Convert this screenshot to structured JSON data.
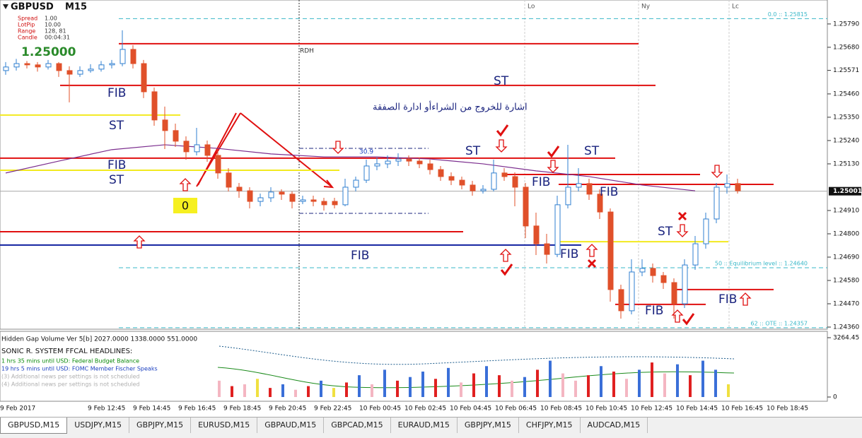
{
  "header": {
    "symbol": "GBPUSD",
    "timeframe": "M15",
    "price": "1.25000",
    "info": [
      [
        "Spread",
        "1.00"
      ],
      [
        "LotPip",
        "10.00"
      ],
      [
        "Range",
        "128, 81"
      ],
      [
        "Candle",
        "00:04:31"
      ]
    ]
  },
  "chart_data": {
    "type": "candlestick",
    "bull_color": "#2f7fd0",
    "bear_color": "#e0502a",
    "ylim": [
      1.2435,
      1.25903
    ],
    "yticks": [
      {
        "value": 1.2579,
        "label": "1.25790"
      },
      {
        "value": 1.2568,
        "label": "1.25680"
      },
      {
        "value": 1.25571,
        "label": "1.25571"
      },
      {
        "value": 1.2546,
        "label": "1.25460"
      },
      {
        "value": 1.2535,
        "label": "1.25350"
      },
      {
        "value": 1.2524,
        "label": "1.25240"
      },
      {
        "value": 1.2513,
        "label": "1.25130"
      },
      {
        "value": 1.2491,
        "label": "1.24910"
      },
      {
        "value": 1.248,
        "label": "1.24800"
      },
      {
        "value": 1.2469,
        "label": "1.24690"
      },
      {
        "value": 1.2458,
        "label": "1.24580"
      },
      {
        "value": 1.2447,
        "label": "1.24470"
      },
      {
        "value": 1.2436,
        "label": "1.24360"
      }
    ],
    "current": {
      "value": 1.25001,
      "label": "1.25001"
    },
    "candles": [
      [
        1.2557,
        1.2561,
        1.2555,
        1.25587
      ],
      [
        1.25587,
        1.25625,
        1.2557,
        1.25603
      ],
      [
        1.25603,
        1.25615,
        1.2558,
        1.25597
      ],
      [
        1.25597,
        1.2561,
        1.25565,
        1.25587
      ],
      [
        1.25587,
        1.2562,
        1.25575,
        1.25603
      ],
      [
        1.25603,
        1.2561,
        1.2554,
        1.2557
      ],
      [
        1.2557,
        1.2559,
        1.2542,
        1.25553
      ],
      [
        1.25553,
        1.2559,
        1.2554,
        1.2557
      ],
      [
        1.2557,
        1.256,
        1.2556,
        1.25577
      ],
      [
        1.25577,
        1.25615,
        1.25565,
        1.25597
      ],
      [
        1.25597,
        1.2562,
        1.2558,
        1.25603
      ],
      [
        1.25603,
        1.2576,
        1.2559,
        1.2567
      ],
      [
        1.2567,
        1.2569,
        1.2558,
        1.25603
      ],
      [
        1.25603,
        1.2562,
        1.2544,
        1.2547
      ],
      [
        1.2547,
        1.2549,
        1.2531,
        1.25337
      ],
      [
        1.25337,
        1.254,
        1.252,
        1.25287
      ],
      [
        1.25287,
        1.2532,
        1.2521,
        1.25237
      ],
      [
        1.25237,
        1.2526,
        1.2515,
        1.25187
      ],
      [
        1.25187,
        1.253,
        1.2517,
        1.2522
      ],
      [
        1.2522,
        1.2524,
        1.2514,
        1.2517
      ],
      [
        1.2517,
        1.2519,
        1.2506,
        1.25087
      ],
      [
        1.25087,
        1.2511,
        1.25,
        1.2502
      ],
      [
        1.2502,
        1.2504,
        1.2497,
        1.25003
      ],
      [
        1.25003,
        1.2502,
        1.2492,
        1.24953
      ],
      [
        1.24953,
        1.2499,
        1.2493,
        1.2497
      ],
      [
        1.2497,
        1.2502,
        1.2495,
        1.24997
      ],
      [
        1.24997,
        1.2501,
        1.2496,
        1.24987
      ],
      [
        1.24987,
        1.25,
        1.2492,
        1.24953
      ],
      [
        1.24953,
        1.2498,
        1.2494,
        1.2496
      ],
      [
        1.2496,
        1.2498,
        1.2493,
        1.24953
      ],
      [
        1.24953,
        1.2497,
        1.2491,
        1.24937
      ],
      [
        1.24953,
        1.2497,
        1.2492,
        1.24937
      ],
      [
        1.24937,
        1.2506,
        1.2493,
        1.2502
      ],
      [
        1.2502,
        1.2507,
        1.25,
        1.25053
      ],
      [
        1.25053,
        1.2515,
        1.2504,
        1.2512
      ],
      [
        1.2512,
        1.2516,
        1.251,
        1.2513
      ],
      [
        1.2513,
        1.2517,
        1.2511,
        1.25143
      ],
      [
        1.25143,
        1.2518,
        1.2512,
        1.25153
      ],
      [
        1.25153,
        1.2517,
        1.2512,
        1.25143
      ],
      [
        1.25143,
        1.2516,
        1.2511,
        1.2513
      ],
      [
        1.2513,
        1.2515,
        1.2508,
        1.25103
      ],
      [
        1.25103,
        1.2512,
        1.2505,
        1.2507
      ],
      [
        1.2507,
        1.2509,
        1.2503,
        1.25053
      ],
      [
        1.25053,
        1.2507,
        1.2501,
        1.2503
      ],
      [
        1.2503,
        1.2505,
        1.2498,
        1.25003
      ],
      [
        1.25003,
        1.2503,
        1.2499,
        1.2501
      ],
      [
        1.2501,
        1.2515,
        1.25,
        1.25087
      ],
      [
        1.25087,
        1.2511,
        1.2505,
        1.2507
      ],
      [
        1.2507,
        1.2509,
        1.2493,
        1.2502
      ],
      [
        1.2502,
        1.2504,
        1.2478,
        1.24837
      ],
      [
        1.24837,
        1.249,
        1.247,
        1.24753
      ],
      [
        1.24753,
        1.248,
        1.2466,
        1.24703
      ],
      [
        1.24703,
        1.2498,
        1.2469,
        1.24937
      ],
      [
        1.24937,
        1.2522,
        1.2492,
        1.2502
      ],
      [
        1.2502,
        1.2511,
        1.25,
        1.25037
      ],
      [
        1.25037,
        1.2506,
        1.2496,
        1.24987
      ],
      [
        1.24987,
        1.2501,
        1.2487,
        1.24903
      ],
      [
        1.24903,
        1.2492,
        1.2448,
        1.24537
      ],
      [
        1.24537,
        1.2456,
        1.244,
        1.24437
      ],
      [
        1.24437,
        1.2468,
        1.2442,
        1.2462
      ],
      [
        1.2462,
        1.2468,
        1.246,
        1.24637
      ],
      [
        1.24637,
        1.2466,
        1.2457,
        1.24603
      ],
      [
        1.24603,
        1.2462,
        1.2454,
        1.2457
      ],
      [
        1.2457,
        1.2459,
        1.244,
        1.2447
      ],
      [
        1.2447,
        1.2468,
        1.2445,
        1.24653
      ],
      [
        1.24653,
        1.2479,
        1.2463,
        1.24753
      ],
      [
        1.24753,
        1.249,
        1.2473,
        1.2487
      ],
      [
        1.2487,
        1.2504,
        1.2485,
        1.2502
      ],
      [
        1.2502,
        1.2508,
        1.2499,
        1.25037
      ],
      [
        1.25037,
        1.2506,
        1.2499,
        1.25003
      ]
    ],
    "ma": {
      "color": "#7b2d8e",
      "values": [
        1.25087,
        1.25143,
        1.25197,
        1.2522,
        1.25203,
        1.25177,
        1.25163,
        1.25163,
        1.25153,
        1.2513,
        1.25097,
        1.2507,
        1.2503,
        1.25003
      ]
    },
    "levels": [
      {
        "value": 1.25697,
        "color": "#e01010"
      },
      {
        "value": 1.255,
        "color": "#e01010"
      },
      {
        "value": 1.25157,
        "color": "#e01010"
      },
      {
        "value": 1.2508,
        "color": "#e01010"
      },
      {
        "value": 1.25033,
        "color": "#e01010"
      },
      {
        "value": 1.2481,
        "color": "#e01010"
      },
      {
        "value": 1.24537,
        "color": "#e01010"
      },
      {
        "value": 1.24467,
        "color": "#e01010"
      },
      {
        "value": 1.24747,
        "color": "#1020a0"
      },
      {
        "value": 1.2536,
        "color": "#f2ea20"
      },
      {
        "value": 1.251,
        "color": "#f2ea20"
      },
      {
        "value": 1.24763,
        "color": "#f2ea20"
      }
    ],
    "fib_levels": [
      {
        "value": 1.25815,
        "label": "0.0 :: 1.25815"
      },
      {
        "value": 1.2464,
        "label": "50 :: Equilibrium level :: 1.24640"
      },
      {
        "value": 1.24357,
        "label": "62 :: OTE :: 1.24357"
      }
    ],
    "x_labels": [
      "9 Feb 2017",
      "9 Feb 12:45",
      "9 Feb 14:45",
      "9 Feb 16:45",
      "9 Feb 18:45",
      "9 Feb 20:45",
      "9 Feb 22:45",
      "10 Feb 00:45",
      "10 Feb 02:45",
      "10 Feb 04:45",
      "10 Feb 06:45",
      "10 Feb 08:45",
      "10 Feb 10:45",
      "10 Feb 12:45",
      "10 Feb 14:45",
      "10 Feb 16:45",
      "10 Feb 18:45"
    ]
  },
  "annotations": {
    "arabic": "اشارة للخروج من الشراءأو ادارة الصفقة",
    "labels": [
      "FIB",
      "ST",
      "FIB",
      "ST",
      "ST",
      "ST",
      "ST",
      "FIB",
      "FIB",
      "FIB",
      "FIB",
      "ST",
      "FIB",
      "FIB"
    ],
    "zero": "0",
    "rdh": "RDH",
    "fib_value": "30.9",
    "sessions": [
      "Lo",
      "Ny",
      "Lc"
    ]
  },
  "volume": {
    "title": "Hidden Gap Volume Ver 5[b] 2027.0000 1338.0000 551.0000",
    "ylim": [
      0,
      3264.45
    ],
    "yticks": [
      {
        "value": 3264.45,
        "label": "3264.45"
      },
      0
    ],
    "values": [
      900,
      600,
      700,
      1000,
      500,
      700,
      400,
      600,
      900,
      500,
      800,
      1200,
      700,
      1500,
      900,
      1100,
      1400,
      1000,
      1600,
      800,
      1300,
      1700,
      1200,
      900,
      1100,
      1500,
      2000,
      1300,
      900,
      1200,
      1700,
      1400,
      1000,
      1500,
      1900,
      1300,
      1800,
      1200,
      2000,
      1500,
      700
    ],
    "colors": [
      "#f4b6c2",
      "#e02020",
      "#f4b6c2",
      "#f0e040",
      "#e02020",
      "#3a6fd8",
      "#f4b6c2",
      "#e02020",
      "#3a6fd8",
      "#f0e040",
      "#e02020",
      "#3a6fd8",
      "#f4b6c2",
      "#3a6fd8",
      "#e02020",
      "#3a6fd8",
      "#3a6fd8",
      "#e02020",
      "#3a6fd8",
      "#f4b6c2",
      "#e02020",
      "#3a6fd8",
      "#e02020",
      "#f4b6c2",
      "#3a6fd8",
      "#e02020",
      "#3a6fd8",
      "#f4b6c2",
      "#f4b6c2",
      "#e02020",
      "#3a6fd8",
      "#e02020",
      "#f4b6c2",
      "#3a6fd8",
      "#e02020",
      "#f4b6c2",
      "#3a6fd8",
      "#e02020",
      "#3a6fd8",
      "#3a6fd8",
      "#f0e040"
    ]
  },
  "news": {
    "title": "SONIC R. SYSTEM  FFCAL HEADLINES:",
    "items": [
      {
        "text": "1 hrs 35 mins until USD: Federal Budget Balance",
        "color": "#0a8a0a"
      },
      {
        "text": "19 hrs 5 mins until USD: FOMC Member Fischer Speaks",
        "color": "#1a3fc0"
      },
      {
        "text": "(3)  Additional news per settings is not scheduled",
        "color": "#b0b0b0"
      },
      {
        "text": "(4)  Additional news per settings is not scheduled",
        "color": "#b0b0b0"
      }
    ]
  },
  "tabs": [
    "GBPUSD,M15",
    "USDJPY,M15",
    "GBPJPY,M15",
    "EURUSD,M15",
    "GBPAUD,M15",
    "GBPCAD,M15",
    "EURAUD,M15",
    "GBPJPY,M15",
    "CHFJPY,M15",
    "AUDCAD,M15"
  ]
}
